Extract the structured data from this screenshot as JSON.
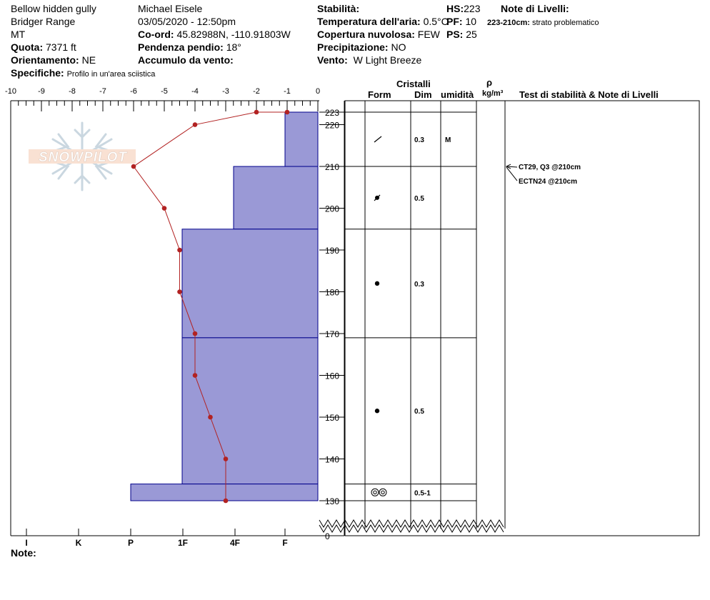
{
  "header": {
    "location": "Bellow hidden gully",
    "range": "Bridger Range",
    "state": "MT",
    "elevation_label": "Quota:",
    "elevation_value": "7371 ft",
    "aspect_label": "Orientamento:",
    "aspect_value": "NE",
    "specifics_label": "Specifiche:",
    "specifics_value": "Profilo in un'area sciistica",
    "observer": "Michael Eisele",
    "datetime": "03/05/2020 - 12:50pm",
    "coord_label": "Co-ord:",
    "coord_value": "45.82988N, -110.91803W",
    "slope_label": "Pendenza pendio:",
    "slope_value": "18°",
    "wind_loading_label": "Accumulo da vento:",
    "stability_label": "Stabilità:",
    "air_temp_label": "Temperatura dell'aria:",
    "air_temp_value": "0.5°C",
    "cloud_label": "Copertura nuvolosa:",
    "cloud_value": "FEW",
    "precip_label": "Precipitazione:",
    "precip_value": "NO",
    "wind_label": "Vento:",
    "wind_value": "W Light Breeze",
    "hs_label": "HS:",
    "hs_value": "223",
    "pf_label": "PF:",
    "pf_value": "10",
    "ps_label": "PS:",
    "ps_value": "25",
    "layer_notes_title": "Note di Livelli:",
    "layer_note_depth": "223-210cm:",
    "layer_note_text": "strato problematico"
  },
  "columns": {
    "crystals": "Cristalli",
    "form": "Form",
    "size": "Dim",
    "moisture": "umidità",
    "rho": "ρ",
    "density_unit": "kg/m³",
    "tests": "Test di stabilità & Note di Livelli"
  },
  "note_label": "Note:",
  "logo_text": "SNOWPILOT",
  "chart_data": {
    "type": "line",
    "temp_ticks": [
      "-10",
      "-9",
      "-8",
      "-7",
      "-6",
      "-5",
      "-4",
      "-3",
      "-2",
      "-1",
      "0"
    ],
    "height_ticks": [
      "223",
      "220",
      "210",
      "200",
      "190",
      "180",
      "170",
      "160",
      "150",
      "140",
      "130",
      "0"
    ],
    "hardness_labels": [
      "I",
      "K",
      "P",
      "1F",
      "4F",
      "F"
    ],
    "xlim": [
      -10,
      0
    ],
    "ylim": [
      0,
      223
    ],
    "temperature_profile": [
      {
        "t": -1,
        "h": 223
      },
      {
        "t": -2,
        "h": 223
      },
      {
        "t": -4,
        "h": 220
      },
      {
        "t": -6,
        "h": 210
      },
      {
        "t": -5,
        "h": 200
      },
      {
        "t": -4.5,
        "h": 190
      },
      {
        "t": -4.5,
        "h": 180
      },
      {
        "t": -4,
        "h": 170
      },
      {
        "t": -4,
        "h": 160
      },
      {
        "t": -3.5,
        "h": 150
      },
      {
        "t": -3,
        "h": 140
      },
      {
        "t": -3,
        "h": 130
      }
    ],
    "layers": [
      {
        "top": 223,
        "bottom": 210,
        "form": "/",
        "size": "0.3",
        "moisture": "M"
      },
      {
        "top": 210,
        "bottom": 195,
        "form": "●/",
        "size": "0.5",
        "moisture": ""
      },
      {
        "top": 195,
        "bottom": 169,
        "form": "●",
        "size": "0.3",
        "moisture": ""
      },
      {
        "top": 169,
        "bottom": 134,
        "form": "●",
        "size": "0.5",
        "moisture": ""
      },
      {
        "top": 134,
        "bottom": 130,
        "form": "◎◎",
        "size": "0.5-1",
        "moisture": ""
      }
    ],
    "tests": [
      {
        "label": "CT29, Q3 @210cm"
      },
      {
        "label": "ECTN24 @210cm"
      }
    ],
    "line_color": "#b22222",
    "hardness_fill": "#9a99d6",
    "hardness_stroke": "#00008b"
  }
}
